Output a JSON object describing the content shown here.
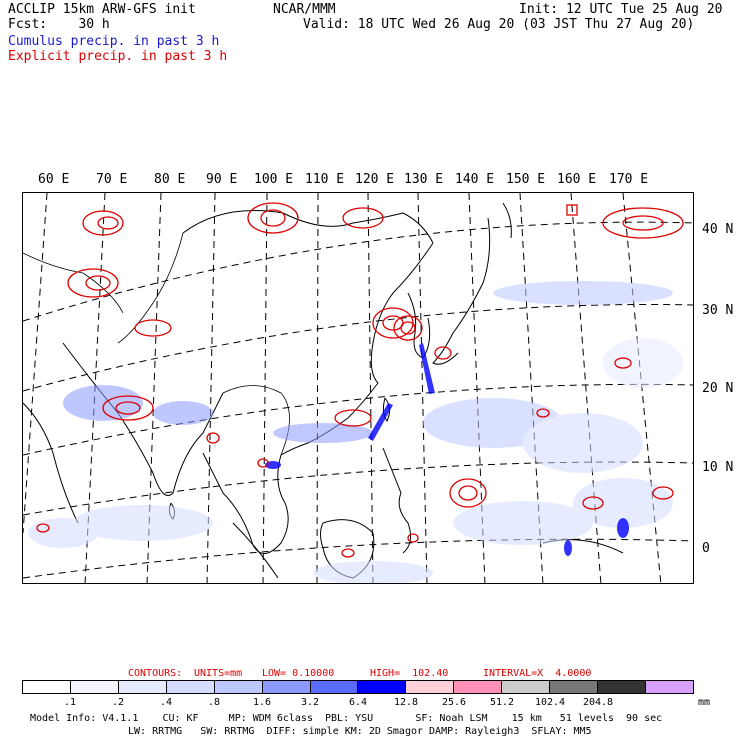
{
  "header": {
    "title_left": "ACCLIP 15km ARW-GFS init",
    "fcst": "Fcst:    30 h",
    "center": "NCAR/MMM",
    "init": "Init: 12 UTC Tue 25 Aug 20",
    "valid": "Valid: 18 UTC Wed 26 Aug 20 (03 JST Thu 27 Aug 20)",
    "cumulus_label": "Cumulus precip. in past 3 h",
    "explicit_label": "Explicit precip. in past 3 h",
    "cumulus_color": "#0000cc",
    "explicit_color": "#dd0000"
  },
  "map": {
    "lon_labels": [
      "60 E",
      "70 E",
      "80 E",
      "90 E",
      "100 E",
      "110 E",
      "120 E",
      "130 E",
      "140 E",
      "150 E",
      "160 E",
      "170 E"
    ],
    "lat_labels": [
      "40 N",
      "30 N",
      "20 N",
      "10 N",
      "0"
    ]
  },
  "contours": {
    "label": "CONTOURS:",
    "units": "UNITS=mm",
    "low": "LOW= 0.10000",
    "high": "HIGH=  102.40",
    "interval": "INTERVAL=X  4.0000",
    "color": "#dd0000"
  },
  "colorbar": {
    "colors": [
      "#ffffff",
      "#f4f4ff",
      "#e6eaff",
      "#d4dcff",
      "#bcc8ff",
      "#8c9aff",
      "#5a6cff",
      "#0000ff",
      "#ffd0d8",
      "#ff90b8",
      "#cccccc",
      "#777777",
      "#333333",
      "#d7a0ff"
    ],
    "labels": [
      ".1",
      ".2",
      ".4",
      ".8",
      "1.6",
      "3.2",
      "6.4",
      "12.8",
      "25.6",
      "51.2",
      "102.4",
      "204.8"
    ],
    "unit": "mm"
  },
  "footer": {
    "line1": "Model Info: V4.1.1    CU: KF     MP: WDM 6class  PBL: YSU       SF: Noah LSM    15 km   51 levels  90 sec",
    "line2": "LW: RRTMG   SW: RRTMG  DIFF: simple KM: 2D Smagor DAMP: Rayleigh3  SFLAY: MM5"
  }
}
